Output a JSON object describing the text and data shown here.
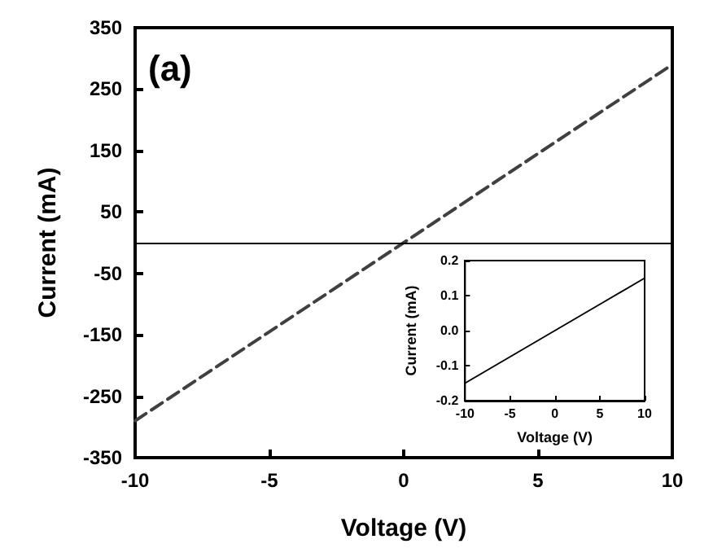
{
  "chart_data": [
    {
      "type": "line",
      "xlabel": "Voltage (V)",
      "ylabel": "Current (mA)",
      "annotations": [
        "(a)"
      ],
      "series": [
        {
          "color": "#404040",
          "x": [
            -10,
            -5,
            0,
            5,
            10
          ],
          "values": [
            -290,
            -145,
            0,
            145,
            290
          ],
          "line_style": "dashed"
        }
      ],
      "xlim": [
        -10,
        10
      ],
      "xticks": [
        -10,
        -5,
        0,
        5,
        10
      ],
      "ylim": [
        -350,
        350
      ],
      "yticks": [
        -350,
        -250,
        -150,
        -50,
        50,
        150,
        250,
        350
      ],
      "ref_lines": [
        {
          "axis": "y",
          "value": 0,
          "color": "#000000",
          "line_style": "solid"
        }
      ],
      "grid": false,
      "marker": "none"
    },
    {
      "type": "line",
      "xlabel": "Voltage (V)",
      "ylabel": "Current (mA)",
      "series": [
        {
          "color": "#000000",
          "x": [
            -10,
            -5,
            0,
            5,
            10
          ],
          "values": [
            -0.15,
            -0.075,
            0,
            0.075,
            0.15
          ],
          "line_style": "solid"
        }
      ],
      "xlim": [
        -10,
        10
      ],
      "xticks": [
        -10,
        -5,
        0,
        5,
        10
      ],
      "ylim": [
        -0.2,
        0.2
      ],
      "yticks": [
        -0.2,
        -0.1,
        {
          "value": 0,
          "label": "0.0"
        },
        0.1,
        0.2
      ],
      "grid": false,
      "marker": "none"
    }
  ]
}
